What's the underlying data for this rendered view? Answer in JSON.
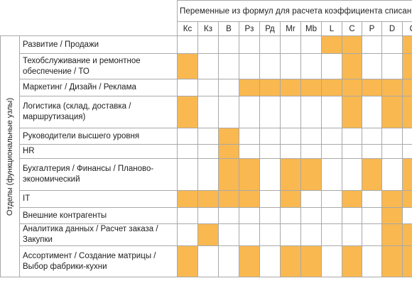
{
  "header": {
    "title": "Переменные из формул для расчета коэффициента списания",
    "side_label": "Отделы (функциональные узлы)"
  },
  "variables": [
    "Кс",
    "Кз",
    "В",
    "Рз",
    "Рд",
    "Mr",
    "Mb",
    "L",
    "C",
    "P",
    "D",
    "Q"
  ],
  "highlight_color": "#f9b850",
  "departments": [
    {
      "name": "Развитие / Продажи",
      "cells": [
        0,
        0,
        0,
        0,
        0,
        0,
        0,
        1,
        1,
        0,
        0,
        1
      ]
    },
    {
      "name": "Техобслуживание и ремонтное обеспечение / ТО",
      "cells": [
        1,
        0,
        0,
        0,
        0,
        0,
        0,
        0,
        1,
        0,
        0,
        1
      ]
    },
    {
      "name": "Маркетинг / Дизайн / Реклама",
      "cells": [
        0,
        0,
        0,
        1,
        1,
        1,
        1,
        1,
        1,
        1,
        1,
        1
      ]
    },
    {
      "name": "Логистика (склад, доставка / маршрутизация)",
      "cells": [
        1,
        0,
        0,
        0,
        0,
        0,
        0,
        0,
        1,
        0,
        1,
        1
      ]
    },
    {
      "name": "Руководители высшего уровня",
      "cells": [
        0,
        0,
        1,
        0,
        0,
        0,
        0,
        0,
        0,
        0,
        0,
        0
      ]
    },
    {
      "name": "HR",
      "cells": [
        0,
        0,
        1,
        0,
        0,
        0,
        0,
        0,
        0,
        0,
        0,
        0
      ]
    },
    {
      "name": "Бухгалтерия / Финансы / Планово-экономический",
      "cells": [
        0,
        0,
        1,
        1,
        0,
        1,
        1,
        0,
        0,
        1,
        0,
        1
      ]
    },
    {
      "name": "IT",
      "cells": [
        1,
        1,
        1,
        1,
        0,
        1,
        0,
        0,
        1,
        0,
        1,
        1
      ]
    },
    {
      "name": "Внешние контрагенты",
      "cells": [
        0,
        0,
        0,
        0,
        0,
        0,
        0,
        0,
        0,
        0,
        1,
        0
      ]
    },
    {
      "name": "Аналитика данных / Расчет заказа / Закупки",
      "cells": [
        0,
        1,
        0,
        0,
        0,
        0,
        0,
        0,
        0,
        0,
        1,
        1
      ]
    },
    {
      "name": "Ассортимент / Создание матрицы / Выбор фабрики-кухни",
      "cells": [
        1,
        0,
        0,
        1,
        0,
        1,
        1,
        0,
        1,
        0,
        1,
        1
      ]
    }
  ]
}
